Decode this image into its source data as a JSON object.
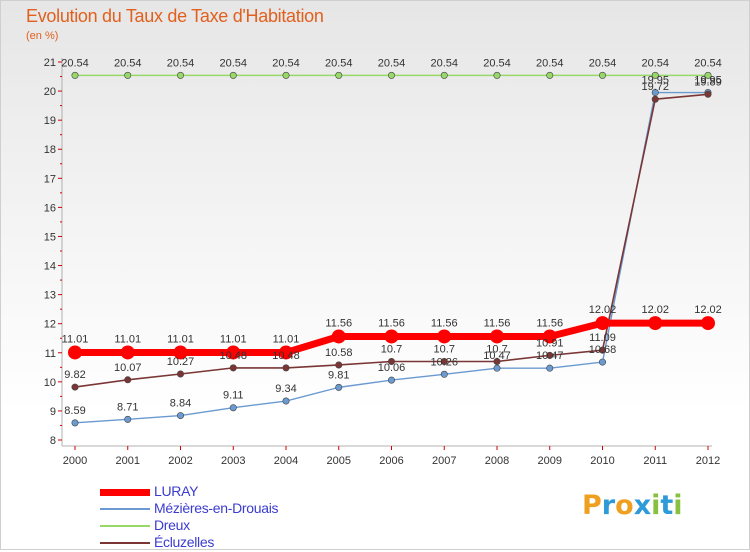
{
  "title": "Evolution du Taux de Taxe d'Habitation",
  "subtitle": "(en %)",
  "chart_data": {
    "type": "line",
    "title": "Evolution du Taux de Taxe d'Habitation",
    "ylabel": "(en %)",
    "xlabel": "",
    "x": [
      "2000",
      "2001",
      "2002",
      "2003",
      "2004",
      "2005",
      "2006",
      "2007",
      "2008",
      "2009",
      "2010",
      "2011",
      "2012"
    ],
    "y_ticks": [
      "8",
      "9",
      "10",
      "11",
      "12",
      "13",
      "14",
      "15",
      "16",
      "17",
      "18",
      "19",
      "20",
      "21"
    ],
    "ylim": [
      8,
      21
    ],
    "grid": false,
    "legend_position": "bottom-left",
    "series": [
      {
        "name": "LURAY",
        "color": "#ff0000",
        "values": [
          11.01,
          11.01,
          11.01,
          11.01,
          11.01,
          11.56,
          11.56,
          11.56,
          11.56,
          11.56,
          12.02,
          12.02,
          12.02
        ],
        "labels": [
          "11.01",
          "11.01",
          "11.01",
          "11.01",
          "11.01",
          "11.56",
          "11.56",
          "11.56",
          "11.56",
          "11.56",
          "12.02",
          "12.02",
          "12.02"
        ]
      },
      {
        "name": "Mézières-en-Drouais",
        "color": "#6a9ad0",
        "values": [
          8.59,
          8.71,
          8.84,
          9.11,
          9.34,
          9.81,
          10.06,
          10.26,
          10.47,
          10.47,
          10.68,
          19.95,
          19.95
        ],
        "labels": [
          "8.59",
          "8.71",
          "8.84",
          "9.11",
          "9.34",
          "9.81",
          "10.06",
          "10.26",
          "10.47",
          "10.47",
          "10.68",
          "19.95",
          "19.95"
        ]
      },
      {
        "name": "Dreux",
        "color": "#98d86a",
        "values": [
          20.54,
          20.54,
          20.54,
          20.54,
          20.54,
          20.54,
          20.54,
          20.54,
          20.54,
          20.54,
          20.54,
          20.54,
          20.54
        ],
        "labels": [
          "20.54",
          "20.54",
          "20.54",
          "20.54",
          "20.54",
          "20.54",
          "20.54",
          "20.54",
          "20.54",
          "20.54",
          "20.54",
          "20.54",
          "20.54"
        ]
      },
      {
        "name": "Écluzelles",
        "color": "#7a3535",
        "values": [
          9.82,
          10.07,
          10.27,
          10.48,
          10.48,
          10.58,
          10.7,
          10.7,
          10.7,
          10.91,
          11.09,
          19.72,
          19.89
        ],
        "labels": [
          "9.82",
          "10.07",
          "10.27",
          "10.48",
          "10.48",
          "10.58",
          "10.7",
          "10.7",
          "10.7",
          "10.91",
          "11.09",
          "19.72",
          "19.89"
        ]
      }
    ]
  },
  "legend": [
    {
      "label": "LURAY",
      "color": "#ff0000"
    },
    {
      "label": "Mézières-en-Drouais",
      "color": "#6a9ad0"
    },
    {
      "label": "Dreux",
      "color": "#98d86a"
    },
    {
      "label": "Écluzelles",
      "color": "#7a3535"
    }
  ],
  "logo": {
    "text": "Proxiti",
    "letters": [
      "P",
      "r",
      "o",
      "x",
      "i",
      "t",
      "i"
    ],
    "colors": [
      "#f0a020",
      "#2f9ad8",
      "#f0a020",
      "#2f9ad8",
      "#88c040",
      "#2f9ad8",
      "#88c040"
    ]
  }
}
